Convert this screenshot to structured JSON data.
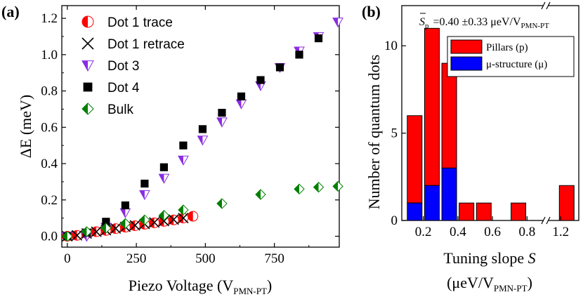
{
  "chart_data": [
    {
      "panel": "(a)",
      "type": "scatter",
      "xlabel": "Piezo Voltage (V",
      "xlabel_sub": "PMN-PT",
      "xlabel_end": ")",
      "ylabel": "ΔE (meV)",
      "xlim": [
        -20,
        985
      ],
      "ylim": [
        -0.06,
        1.27
      ],
      "xticks": [
        0,
        250,
        500,
        750
      ],
      "yticks": [
        0.0,
        0.2,
        0.4,
        0.6,
        0.8,
        1.0,
        1.2
      ],
      "ytick_labels": [
        "0.0",
        "0.2",
        "0.4",
        "0.6",
        "0.8",
        "1.0",
        "1.2"
      ],
      "grid": false,
      "legend_position": "top-left",
      "series": [
        {
          "name": "Dot 1 trace",
          "marker": "half-filled-circle",
          "color": "#ff0000",
          "x": [
            0,
            35,
            70,
            105,
            140,
            175,
            210,
            245,
            280,
            315,
            350,
            385,
            420,
            455
          ],
          "y": [
            0.0,
            0.005,
            0.015,
            0.025,
            0.032,
            0.042,
            0.05,
            0.058,
            0.066,
            0.074,
            0.082,
            0.09,
            0.1,
            0.11
          ]
        },
        {
          "name": "Dot 1 retrace",
          "marker": "x",
          "color": "#000000",
          "x": [
            0,
            35,
            70,
            105,
            140,
            175,
            210,
            245,
            280,
            315,
            350,
            385,
            420
          ],
          "y": [
            0.0,
            0.005,
            0.015,
            0.025,
            0.033,
            0.043,
            0.052,
            0.06,
            0.068,
            0.076,
            0.084,
            0.092,
            0.1
          ]
        },
        {
          "name": "Dot 3",
          "marker": "half-filled-triangle-down",
          "color": "#8a2be2",
          "x": [
            0,
            70,
            140,
            210,
            280,
            350,
            420,
            490,
            560,
            630,
            700,
            770,
            840,
            910,
            980
          ],
          "y": [
            0.0,
            0.0,
            0.05,
            0.13,
            0.23,
            0.32,
            0.42,
            0.53,
            0.63,
            0.73,
            0.83,
            0.93,
            1.02,
            1.1,
            1.18
          ]
        },
        {
          "name": "Dot 4",
          "marker": "square",
          "color": "#000000",
          "x": [
            0,
            70,
            140,
            210,
            280,
            350,
            420,
            490,
            560,
            630,
            700,
            770,
            840,
            910
          ],
          "y": [
            0.0,
            0.02,
            0.08,
            0.17,
            0.29,
            0.38,
            0.5,
            0.59,
            0.68,
            0.77,
            0.86,
            0.93,
            1.0,
            1.09
          ]
        },
        {
          "name": "Bulk",
          "marker": "half-filled-diamond",
          "color": "#008000",
          "x": [
            0,
            70,
            140,
            210,
            280,
            350,
            420,
            560,
            700,
            840,
            910,
            980
          ],
          "y": [
            0.0,
            0.025,
            0.045,
            0.07,
            0.09,
            0.115,
            0.145,
            0.18,
            0.23,
            0.26,
            0.27,
            0.275
          ]
        }
      ]
    },
    {
      "panel": "(b)",
      "type": "bar",
      "stacked": true,
      "xlabel": "Tuning slope",
      "xlabel_var": "S",
      "xlabel2": "(μeV/V",
      "xlabel2_sub": "PMN-PT",
      "xlabel2_end": ")",
      "ylabel": "Number of quantum dots",
      "ylim": [
        0,
        12.3
      ],
      "yticks": [
        0,
        5,
        10
      ],
      "xticks": [
        "0.2",
        "0.4",
        "0.6",
        "0.8",
        "1.2"
      ],
      "axis_break": true,
      "annotation": {
        "symbol": "S",
        "sub": "p",
        "text": "=0.40 ±0.33 μeV/V",
        "text_sub": "PMN-PT"
      },
      "legend_position": "top-right",
      "bins": [
        {
          "center": 0.15,
          "pillars": 5,
          "micro": 1
        },
        {
          "center": 0.25,
          "pillars": 9,
          "micro": 2
        },
        {
          "center": 0.35,
          "pillars": 6,
          "micro": 3
        },
        {
          "center": 0.45,
          "pillars": 1,
          "micro": 0
        },
        {
          "center": 0.55,
          "pillars": 1,
          "micro": 0
        },
        {
          "center": 0.75,
          "pillars": 1,
          "micro": 0
        },
        {
          "center": 1.25,
          "pillars": 2,
          "micro": 0
        }
      ],
      "series": [
        {
          "name": "Pillars (p)",
          "color": "#ff0000"
        },
        {
          "name": "μ-structure (μ)",
          "color": "#0000ff"
        }
      ]
    }
  ]
}
